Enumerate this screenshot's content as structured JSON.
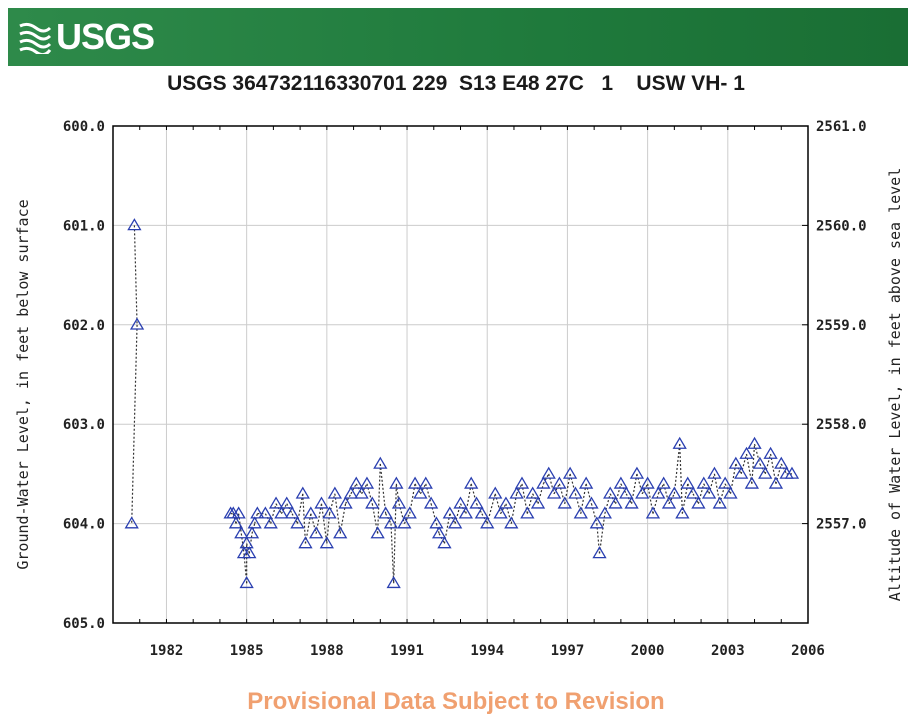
{
  "header": {
    "logo_text": "USGS",
    "logo_icon": "usgs-wave-icon",
    "banner_color": "#1f7a3c"
  },
  "footer": {
    "text": "Provisional Data Subject to Revision",
    "color": "#f0a070"
  },
  "chart_data": {
    "type": "scatter",
    "title": "USGS 364732116330701 229  S13 E48 27C   1    USW VH- 1",
    "ylabel": "Ground-Water Level, in feet below surface",
    "y2label": "Altitude of Water Level, in feet above sea level",
    "xlim": [
      1980,
      2006
    ],
    "ylim": [
      600.0,
      605.0
    ],
    "y_inverted": true,
    "y2lim": [
      2561.0,
      2556.0
    ],
    "x_ticks": [
      1982,
      1985,
      1988,
      1991,
      1994,
      1997,
      2000,
      2003,
      2006
    ],
    "y_ticks": [
      "600.0",
      "601.0",
      "602.0",
      "603.0",
      "604.0",
      "605.0"
    ],
    "y2_ticks": [
      "2561.0",
      "2560.0",
      "2559.0",
      "2558.0",
      "2557.0"
    ],
    "marker": "triangle",
    "color": "#2a3fb0",
    "grid": true,
    "series": [
      {
        "points": [
          [
            1980.8,
            601.0
          ],
          [
            1980.9,
            602.0
          ],
          [
            1980.7,
            604.0
          ],
          [
            1984.4,
            603.9
          ],
          [
            1984.5,
            603.9
          ],
          [
            1984.6,
            604.0
          ],
          [
            1984.7,
            603.9
          ],
          [
            1984.8,
            604.1
          ],
          [
            1984.9,
            604.3
          ],
          [
            1985.0,
            604.6
          ],
          [
            1985.0,
            604.2
          ],
          [
            1985.1,
            604.3
          ],
          [
            1985.2,
            604.1
          ],
          [
            1985.3,
            604.0
          ],
          [
            1985.4,
            603.9
          ],
          [
            1985.7,
            603.9
          ],
          [
            1985.9,
            604.0
          ],
          [
            1986.1,
            603.8
          ],
          [
            1986.3,
            603.9
          ],
          [
            1986.5,
            603.8
          ],
          [
            1986.7,
            603.9
          ],
          [
            1986.9,
            604.0
          ],
          [
            1987.1,
            603.7
          ],
          [
            1987.2,
            604.2
          ],
          [
            1987.4,
            603.9
          ],
          [
            1987.6,
            604.1
          ],
          [
            1987.8,
            603.8
          ],
          [
            1988.0,
            604.2
          ],
          [
            1988.1,
            603.9
          ],
          [
            1988.3,
            603.7
          ],
          [
            1988.5,
            604.1
          ],
          [
            1988.7,
            603.8
          ],
          [
            1988.9,
            603.7
          ],
          [
            1989.1,
            603.6
          ],
          [
            1989.3,
            603.7
          ],
          [
            1989.5,
            603.6
          ],
          [
            1989.7,
            603.8
          ],
          [
            1989.9,
            604.1
          ],
          [
            1990.0,
            603.4
          ],
          [
            1990.2,
            603.9
          ],
          [
            1990.4,
            604.0
          ],
          [
            1990.5,
            604.6
          ],
          [
            1990.6,
            603.6
          ],
          [
            1990.7,
            603.8
          ],
          [
            1990.9,
            604.0
          ],
          [
            1991.1,
            603.9
          ],
          [
            1991.3,
            603.6
          ],
          [
            1991.5,
            603.7
          ],
          [
            1991.7,
            603.6
          ],
          [
            1991.9,
            603.8
          ],
          [
            1992.1,
            604.0
          ],
          [
            1992.2,
            604.1
          ],
          [
            1992.4,
            604.2
          ],
          [
            1992.6,
            603.9
          ],
          [
            1992.8,
            604.0
          ],
          [
            1993.0,
            603.8
          ],
          [
            1993.2,
            603.9
          ],
          [
            1993.4,
            603.6
          ],
          [
            1993.6,
            603.8
          ],
          [
            1993.8,
            603.9
          ],
          [
            1994.0,
            604.0
          ],
          [
            1994.3,
            603.7
          ],
          [
            1994.5,
            603.9
          ],
          [
            1994.7,
            603.8
          ],
          [
            1994.9,
            604.0
          ],
          [
            1995.1,
            603.7
          ],
          [
            1995.3,
            603.6
          ],
          [
            1995.5,
            603.9
          ],
          [
            1995.7,
            603.7
          ],
          [
            1995.9,
            603.8
          ],
          [
            1996.1,
            603.6
          ],
          [
            1996.3,
            603.5
          ],
          [
            1996.5,
            603.7
          ],
          [
            1996.7,
            603.6
          ],
          [
            1996.9,
            603.8
          ],
          [
            1997.1,
            603.5
          ],
          [
            1997.3,
            603.7
          ],
          [
            1997.5,
            603.9
          ],
          [
            1997.7,
            603.6
          ],
          [
            1997.9,
            603.8
          ],
          [
            1998.1,
            604.0
          ],
          [
            1998.2,
            604.3
          ],
          [
            1998.4,
            603.9
          ],
          [
            1998.6,
            603.7
          ],
          [
            1998.8,
            603.8
          ],
          [
            1999.0,
            603.6
          ],
          [
            1999.2,
            603.7
          ],
          [
            1999.4,
            603.8
          ],
          [
            1999.6,
            603.5
          ],
          [
            1999.8,
            603.7
          ],
          [
            2000.0,
            603.6
          ],
          [
            2000.2,
            603.9
          ],
          [
            2000.4,
            603.7
          ],
          [
            2000.6,
            603.6
          ],
          [
            2000.8,
            603.8
          ],
          [
            2001.0,
            603.7
          ],
          [
            2001.2,
            603.2
          ],
          [
            2001.3,
            603.9
          ],
          [
            2001.5,
            603.6
          ],
          [
            2001.7,
            603.7
          ],
          [
            2001.9,
            603.8
          ],
          [
            2002.1,
            603.6
          ],
          [
            2002.3,
            603.7
          ],
          [
            2002.5,
            603.5
          ],
          [
            2002.7,
            603.8
          ],
          [
            2002.9,
            603.6
          ],
          [
            2003.1,
            603.7
          ],
          [
            2003.3,
            603.4
          ],
          [
            2003.5,
            603.5
          ],
          [
            2003.7,
            603.3
          ],
          [
            2003.9,
            603.6
          ],
          [
            2004.0,
            603.2
          ],
          [
            2004.2,
            603.4
          ],
          [
            2004.4,
            603.5
          ],
          [
            2004.6,
            603.3
          ],
          [
            2004.8,
            603.6
          ],
          [
            2005.0,
            603.4
          ],
          [
            2005.2,
            603.5
          ],
          [
            2005.4,
            603.5
          ]
        ]
      }
    ]
  }
}
